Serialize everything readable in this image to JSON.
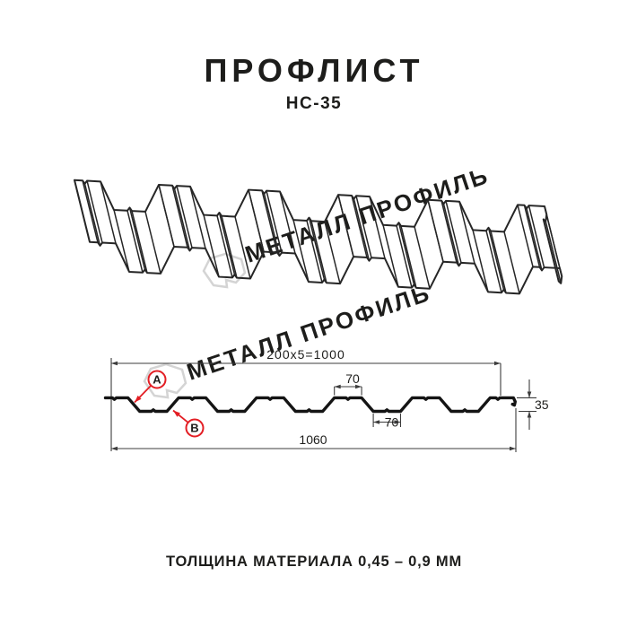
{
  "page": {
    "title": "ПРОФЛИСТ",
    "subtitle": "НС-35",
    "footer": "ТОЛЩИНА МАТЕРИАЛА 0,45 – 0,9 ММ"
  },
  "watermark": {
    "text": "МЕТАЛЛ ПРОФИЛЬ",
    "color": "#d4d4d4"
  },
  "dimensions": {
    "top_width": "200x5=1000",
    "rib_top": "70",
    "rib_bottom": "70",
    "height": "35",
    "total_width": "1060"
  },
  "labels": {
    "point_a": "А",
    "point_b": "В"
  },
  "colors": {
    "accent": "#e31e24",
    "line": "#262626",
    "profile": "#141414",
    "dim": "#3c3c3c"
  }
}
